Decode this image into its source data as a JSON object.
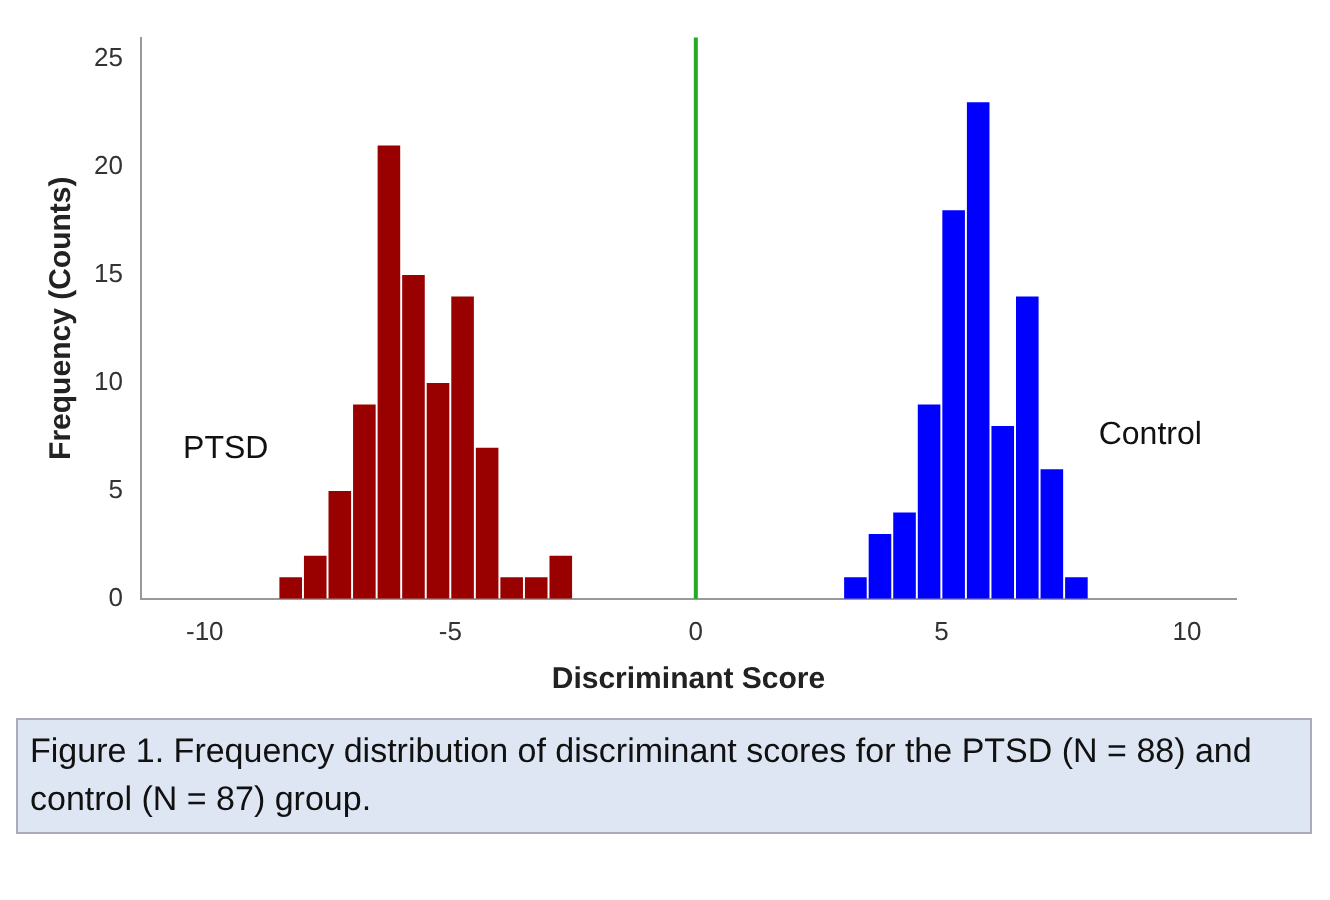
{
  "chart_data": {
    "type": "histogram",
    "xlabel": "Discriminant Score",
    "ylabel": "Frequency (Counts)",
    "bins": [
      -8.5,
      -8,
      -7.5,
      -7,
      -6.5,
      -6,
      -5.5,
      -5,
      -4.5,
      -4,
      -3.5,
      -3,
      -2.5,
      -2,
      -1.5,
      -1,
      -0.5,
      0,
      0.5,
      1,
      1.5,
      2,
      2.5,
      3,
      3.5,
      4,
      4.5,
      5,
      5.5,
      6,
      6.5,
      7,
      7.5,
      8
    ],
    "series": [
      {
        "name": "PTSD",
        "color": "#990000",
        "values": [
          1,
          2,
          5,
          9,
          21,
          15,
          10,
          14,
          7,
          1,
          1,
          2,
          0,
          0,
          0,
          0,
          0,
          0,
          0,
          0,
          0,
          0,
          0,
          0,
          0,
          0,
          0,
          0,
          0,
          0,
          0,
          0,
          0
        ]
      },
      {
        "name": "Control",
        "color": "#0000ff",
        "values": [
          0,
          0,
          0,
          0,
          0,
          0,
          0,
          0,
          0,
          0,
          0,
          0,
          0,
          0,
          0,
          0,
          0,
          0,
          0,
          0,
          0,
          0,
          0,
          1,
          3,
          4,
          9,
          18,
          23,
          8,
          14,
          6,
          1
        ]
      }
    ],
    "xlim": [
      -11.3,
      11
    ],
    "xticks": [
      -10,
      -5,
      0,
      5,
      10
    ],
    "ylim": [
      0,
      26
    ],
    "yticks": [
      0,
      5,
      10,
      15,
      20,
      25
    ],
    "ref_lines": [
      {
        "axis": "x",
        "value": 0,
        "color": "#22aa22"
      }
    ],
    "grid": false,
    "legend": false,
    "annotations": [
      "Figure 1. Frequency distribution of discriminant scores for the PTSD (N = 88) and control (N = 87) group."
    ]
  }
}
